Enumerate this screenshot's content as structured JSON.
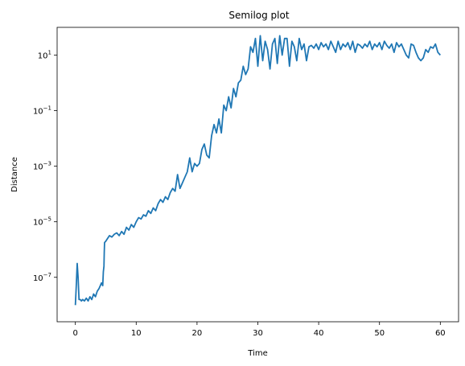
{
  "chart_data": {
    "type": "line",
    "title": "Semilog plot",
    "xlabel": "Time",
    "ylabel": "Distance",
    "xlim": [
      -3,
      63
    ],
    "ylim_log10": [
      -8.6,
      2.0
    ],
    "yscale": "log",
    "grid": false,
    "x_ticks": [
      0,
      10,
      20,
      30,
      40,
      50,
      60
    ],
    "y_ticks": [
      {
        "exp": -7,
        "base": "10",
        "sup": "−7"
      },
      {
        "exp": -5,
        "base": "10",
        "sup": "−5"
      },
      {
        "exp": -3,
        "base": "10",
        "sup": "−3"
      },
      {
        "exp": -1,
        "base": "10",
        "sup": "−1"
      },
      {
        "exp": 1,
        "base": "10",
        "sup": "1"
      }
    ],
    "series": [
      {
        "color": "#1f77b4",
        "x": [
          0,
          0.15,
          0.3,
          0.45,
          0.6,
          0.8,
          1.0,
          1.2,
          1.5,
          1.8,
          2.1,
          2.4,
          2.7,
          3.0,
          3.3,
          3.6,
          3.9,
          4.1,
          4.3,
          4.5,
          4.6,
          4.7,
          4.75,
          4.8,
          5.0,
          5.3,
          5.6,
          6.0,
          6.4,
          6.8,
          7.2,
          7.6,
          8.0,
          8.4,
          8.8,
          9.2,
          9.6,
          10.0,
          10.4,
          10.8,
          11.2,
          11.6,
          12.0,
          12.4,
          12.8,
          13.2,
          13.6,
          14.0,
          14.4,
          14.8,
          15.2,
          15.6,
          16.0,
          16.4,
          16.8,
          17.2,
          17.6,
          18.0,
          18.4,
          18.8,
          19.2,
          19.6,
          20.0,
          20.4,
          20.8,
          21.2,
          21.6,
          22.0,
          22.4,
          22.8,
          23.2,
          23.6,
          24.0,
          24.4,
          24.8,
          25.2,
          25.6,
          26.0,
          26.4,
          26.8,
          27.2,
          27.6,
          28.0,
          28.4,
          28.8,
          29.2,
          29.6,
          30.0,
          30.4,
          30.8,
          31.2,
          31.6,
          32.0,
          32.4,
          32.8,
          33.2,
          33.6,
          34.0,
          34.4,
          34.8,
          35.2,
          35.6,
          36.0,
          36.4,
          36.8,
          37.2,
          37.6,
          38.0,
          38.4,
          38.8,
          39.2,
          39.6,
          40.0,
          40.4,
          40.8,
          41.2,
          41.6,
          42.0,
          42.4,
          42.8,
          43.2,
          43.6,
          44.0,
          44.4,
          44.8,
          45.2,
          45.6,
          46.0,
          46.4,
          46.8,
          47.2,
          47.6,
          48.0,
          48.4,
          48.8,
          49.2,
          49.6,
          50.0,
          50.4,
          50.8,
          51.2,
          51.6,
          52.0,
          52.4,
          52.8,
          53.2,
          53.6,
          54.0,
          54.4,
          54.8,
          55.2,
          55.6,
          56.0,
          56.4,
          56.8,
          57.2,
          57.6,
          58.0,
          58.4,
          58.8,
          59.2,
          59.6,
          60.0
        ],
        "log10_y": [
          -8.0,
          -7.3,
          -6.5,
          -7.0,
          -7.8,
          -7.8,
          -7.85,
          -7.8,
          -7.85,
          -7.75,
          -7.85,
          -7.7,
          -7.8,
          -7.6,
          -7.7,
          -7.5,
          -7.4,
          -7.3,
          -7.2,
          -7.3,
          -6.8,
          -6.6,
          -6.1,
          -5.75,
          -5.7,
          -5.6,
          -5.5,
          -5.55,
          -5.45,
          -5.4,
          -5.5,
          -5.35,
          -5.45,
          -5.2,
          -5.3,
          -5.1,
          -5.2,
          -5.0,
          -4.85,
          -4.9,
          -4.75,
          -4.8,
          -4.6,
          -4.7,
          -4.5,
          -4.6,
          -4.35,
          -4.2,
          -4.3,
          -4.1,
          -4.2,
          -3.95,
          -3.8,
          -3.9,
          -3.3,
          -3.8,
          -3.6,
          -3.4,
          -3.2,
          -2.7,
          -3.2,
          -2.9,
          -3.0,
          -2.9,
          -2.4,
          -2.2,
          -2.6,
          -2.7,
          -1.9,
          -1.5,
          -1.8,
          -1.3,
          -1.8,
          -0.8,
          -1.0,
          -0.5,
          -0.9,
          -0.2,
          -0.5,
          0.0,
          0.1,
          0.6,
          0.3,
          0.5,
          1.3,
          1.1,
          1.6,
          0.6,
          1.7,
          0.8,
          1.5,
          1.2,
          0.5,
          1.4,
          1.6,
          0.7,
          1.7,
          1.0,
          1.6,
          1.6,
          0.6,
          1.5,
          1.3,
          0.8,
          1.6,
          1.2,
          1.4,
          0.8,
          1.3,
          1.35,
          1.25,
          1.4,
          1.2,
          1.45,
          1.3,
          1.4,
          1.2,
          1.5,
          1.3,
          1.1,
          1.5,
          1.2,
          1.4,
          1.3,
          1.45,
          1.2,
          1.5,
          1.1,
          1.4,
          1.35,
          1.25,
          1.4,
          1.3,
          1.5,
          1.2,
          1.4,
          1.3,
          1.45,
          1.2,
          1.5,
          1.35,
          1.25,
          1.4,
          1.1,
          1.45,
          1.3,
          1.4,
          1.2,
          1.0,
          0.9,
          1.4,
          1.35,
          1.1,
          0.9,
          0.8,
          0.9,
          1.2,
          1.1,
          1.3,
          1.25,
          1.4,
          1.1,
          1.0
        ]
      }
    ]
  }
}
